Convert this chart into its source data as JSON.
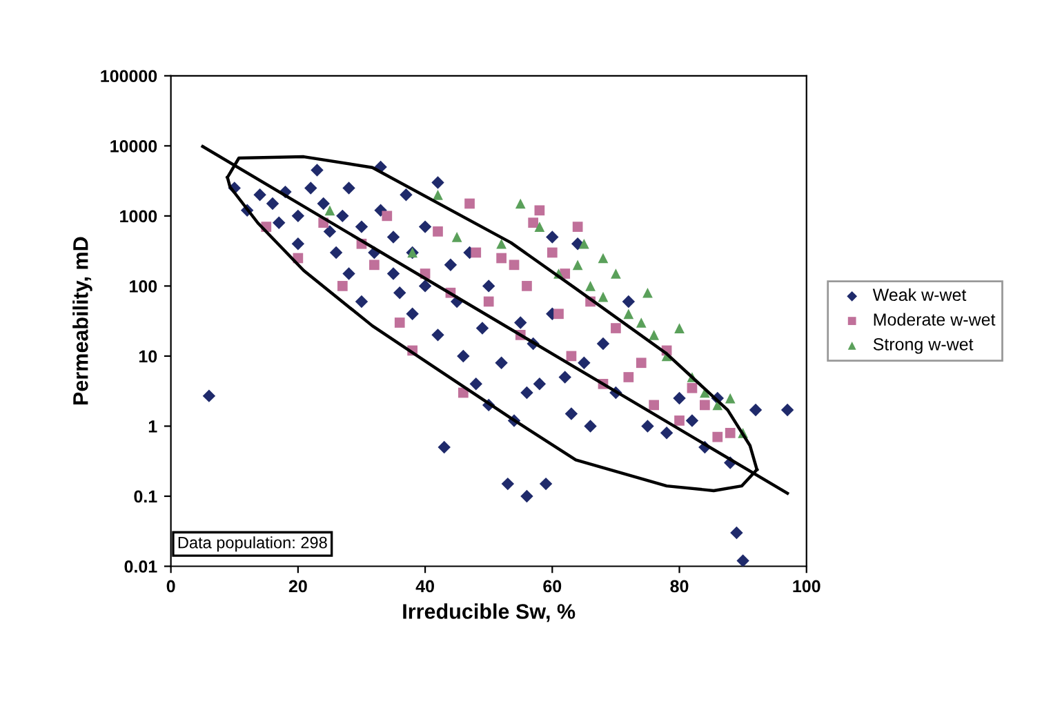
{
  "chart_data": {
    "type": "scatter",
    "xlabel": "Irreducible Sw, %",
    "ylabel": "Permeability, mD",
    "log": "y",
    "xlim": [
      0,
      100
    ],
    "ylim": [
      0.01,
      100000
    ],
    "xticks": [
      0,
      20,
      40,
      60,
      80,
      100
    ],
    "yticks": [
      0.01,
      0.1,
      1,
      10,
      100,
      1000,
      10000,
      100000
    ],
    "grid": false,
    "legend": "right",
    "annotations": [
      "Data population: 298"
    ],
    "series": [
      {
        "name": "Weak w-wet",
        "marker": "diamond",
        "color": "#1f2a6b",
        "x": [
          6,
          10,
          12,
          14,
          16,
          17,
          18,
          20,
          20,
          22,
          23,
          24,
          25,
          26,
          27,
          28,
          28,
          30,
          30,
          32,
          33,
          33,
          35,
          35,
          36,
          37,
          38,
          38,
          40,
          40,
          42,
          42,
          43,
          44,
          45,
          46,
          47,
          48,
          49,
          50,
          50,
          52,
          53,
          54,
          55,
          56,
          56,
          57,
          58,
          59,
          60,
          60,
          62,
          63,
          64,
          65,
          66,
          68,
          70,
          72,
          75,
          78,
          80,
          82,
          84,
          86,
          88,
          89,
          90,
          92,
          97
        ],
        "values": [
          2.7,
          2500,
          1200,
          2000,
          1500,
          800,
          2200,
          1000,
          400,
          2500,
          4500,
          1500,
          600,
          300,
          1000,
          150,
          2500,
          700,
          60,
          300,
          5000,
          1200,
          150,
          500,
          80,
          2000,
          40,
          300,
          100,
          700,
          20,
          3000,
          0.5,
          200,
          60,
          10,
          300,
          4,
          25,
          2,
          100,
          8,
          0.15,
          1.2,
          30,
          3,
          0.1,
          15,
          4,
          0.15,
          500,
          40,
          5,
          1.5,
          400,
          8,
          1,
          15,
          3,
          60,
          1,
          0.8,
          2.5,
          1.2,
          0.5,
          2.5,
          0.3,
          0.03,
          0.012,
          1.7,
          1.7
        ]
      },
      {
        "name": "Moderate w-wet",
        "marker": "square",
        "color": "#c0709a",
        "x": [
          15,
          20,
          24,
          27,
          30,
          32,
          34,
          36,
          38,
          40,
          42,
          44,
          46,
          47,
          48,
          50,
          52,
          54,
          55,
          56,
          57,
          58,
          60,
          61,
          62,
          63,
          64,
          66,
          68,
          70,
          72,
          74,
          76,
          78,
          80,
          82,
          84,
          86,
          88
        ],
        "values": [
          700,
          250,
          800,
          100,
          400,
          200,
          1000,
          30,
          12,
          150,
          600,
          80,
          3,
          1500,
          300,
          60,
          250,
          200,
          20,
          100,
          800,
          1200,
          300,
          40,
          150,
          10,
          700,
          60,
          4,
          25,
          5,
          8,
          2,
          12,
          1.2,
          3.5,
          2,
          0.7,
          0.8
        ]
      },
      {
        "name": "Strong w-wet",
        "marker": "triangle",
        "color": "#5aa05a",
        "x": [
          25,
          38,
          42,
          45,
          52,
          55,
          58,
          61,
          64,
          65,
          66,
          68,
          68,
          70,
          72,
          74,
          75,
          76,
          78,
          80,
          82,
          84,
          86,
          88,
          90
        ],
        "values": [
          1200,
          300,
          2000,
          500,
          400,
          1500,
          700,
          150,
          200,
          400,
          100,
          70,
          250,
          150,
          40,
          30,
          80,
          20,
          10,
          25,
          5,
          3,
          2,
          2.5,
          0.8
        ]
      },
      {
        "type": "line",
        "color": "#000000",
        "x": [
          5,
          97
        ],
        "values": [
          9800,
          0.11
        ]
      },
      {
        "type": "line",
        "color": "#000000",
        "x": [
          8.9,
          10.7,
          20.9,
          31.7,
          53.5,
          63.7,
          78.0,
          87.6,
          91.1,
          92.2
        ],
        "values": [
          3550,
          6700,
          7000,
          4900,
          415,
          92,
          10.8,
          1.7,
          0.53,
          0.24
        ]
      },
      {
        "type": "line",
        "color": "#000000",
        "x": [
          8.9,
          9.3,
          13.7,
          20.9,
          31.7,
          42.6,
          53.5,
          63.7,
          78.0,
          85.4,
          89.8,
          92.2
        ],
        "values": [
          3550,
          2600,
          790,
          166,
          27,
          5.9,
          1.3,
          0.33,
          0.14,
          0.12,
          0.14,
          0.24
        ]
      }
    ]
  }
}
